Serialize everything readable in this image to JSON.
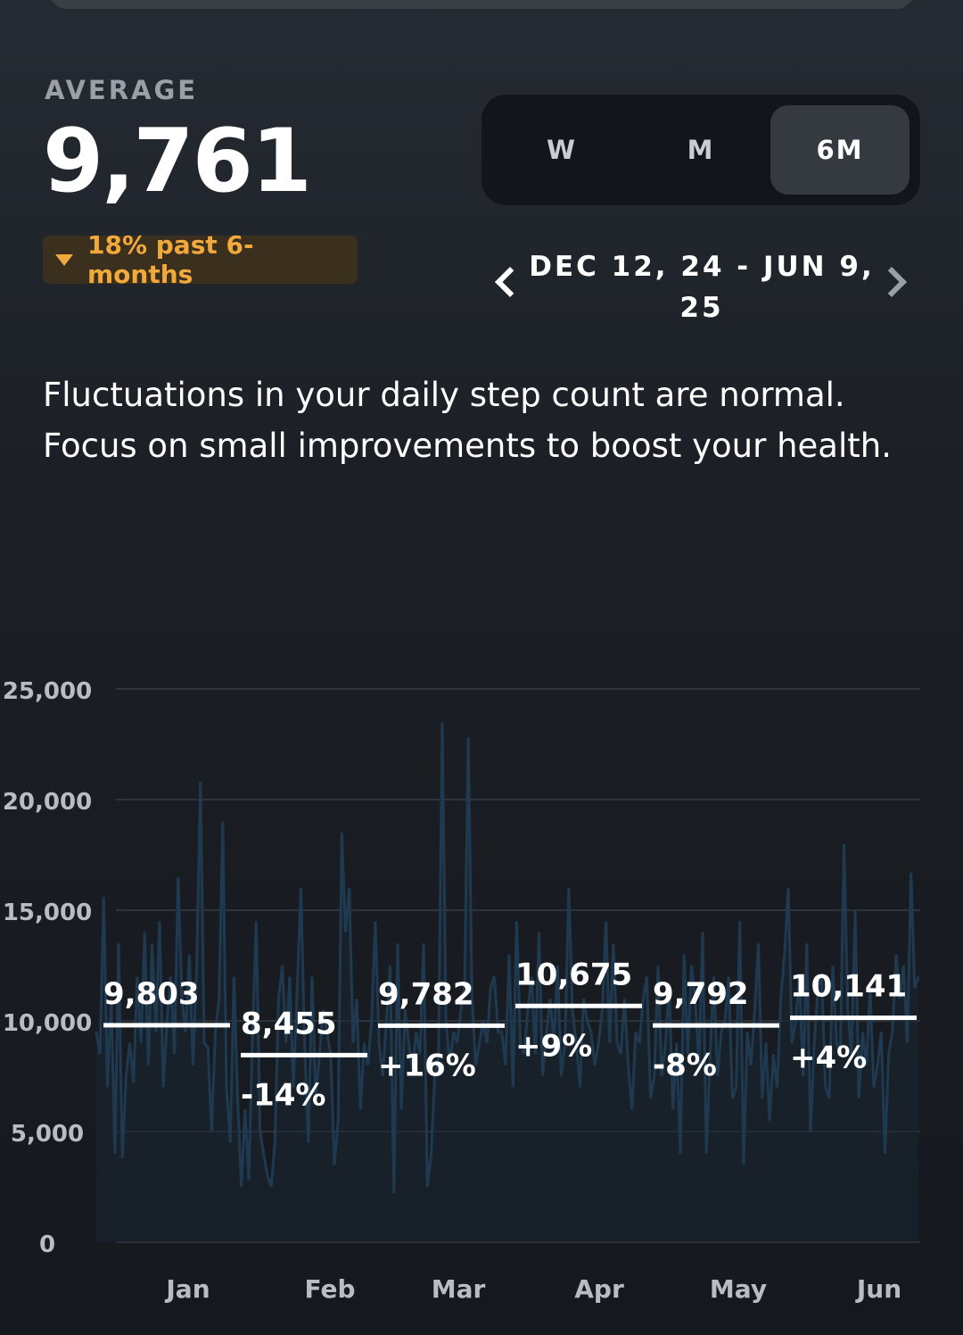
{
  "summary": {
    "label": "AVERAGE",
    "value": "9,761",
    "change_text": "18% past 6-months",
    "change_color": "#f2a93b"
  },
  "range_selector": {
    "options": [
      "W",
      "M",
      "6M"
    ],
    "selected": "6M"
  },
  "date_range": "DEC 12, 24 - JUN 9, 25",
  "message": "Fluctuations in your daily step count are normal. Focus on small improvements to boost your health.",
  "chart_data": {
    "type": "line",
    "ylim": [
      0,
      25000
    ],
    "yticks": [
      "25,000",
      "20,000",
      "15,000",
      "10,000",
      "5,000",
      "0"
    ],
    "ytick_values": [
      25000,
      20000,
      15000,
      10000,
      5000,
      0
    ],
    "months": [
      "Jan",
      "Feb",
      "Mar",
      "Apr",
      "May",
      "Jun"
    ],
    "monthly_averages": [
      {
        "value": 9803,
        "label": "9,803",
        "change": ""
      },
      {
        "value": 8455,
        "label": "8,455",
        "change": "-14%"
      },
      {
        "value": 9782,
        "label": "9,782",
        "change": "+16%"
      },
      {
        "value": 10675,
        "label": "10,675",
        "change": "+9%"
      },
      {
        "value": 9792,
        "label": "9,792",
        "change": "-8%"
      },
      {
        "value": 10141,
        "label": "10,141",
        "change": "+4%"
      }
    ],
    "daily_steps": [
      9500,
      8500,
      15600,
      7000,
      11000,
      4000,
      13500,
      3800,
      7500,
      9000,
      7200,
      12000,
      9000,
      14000,
      8000,
      13500,
      9500,
      14500,
      7000,
      10000,
      12000,
      8500,
      16500,
      11000,
      9500,
      13000,
      8000,
      12500,
      20800,
      9000,
      8800,
      5000,
      9500,
      11000,
      19000,
      7000,
      4500,
      12000,
      6500,
      2500,
      6000,
      2800,
      9500,
      14500,
      5000,
      4000,
      3000,
      2500,
      4500,
      11000,
      12500,
      9000,
      12000,
      7000,
      11500,
      16000,
      9000,
      4500,
      12000,
      6500,
      8500,
      10500,
      9500,
      8500,
      3500,
      5500,
      18500,
      14000,
      16000,
      9000,
      11000,
      6000,
      9000,
      8000,
      10000,
      14500,
      9000,
      7500,
      10000,
      12500,
      2200,
      13500,
      6000,
      10500,
      9000,
      7800,
      9500,
      8500,
      13500,
      2500,
      4000,
      7500,
      8500,
      23500,
      10000,
      8000,
      9500,
      9000,
      10500,
      11500,
      22800,
      11000,
      8000,
      9000,
      10000,
      9000,
      11500,
      12000,
      9500,
      9500,
      8000,
      13000,
      7000,
      14500,
      9000,
      8500,
      10500,
      12000,
      8500,
      14000,
      7500,
      9500,
      11000,
      9000,
      12500,
      7500,
      9000,
      16000,
      10500,
      9000,
      7000,
      11000,
      10000,
      9500,
      8000,
      9000,
      10500,
      14500,
      9000,
      13500,
      9000,
      8500,
      11000,
      8000,
      6000,
      9500,
      9000,
      11000,
      12000,
      6500,
      7500,
      12500,
      7500,
      9000,
      11500,
      6000,
      9000,
      4000,
      13000,
      8500,
      12500,
      11000,
      8000,
      14000,
      4000,
      8500,
      12000,
      7500,
      9500,
      10000,
      12000,
      6500,
      7000,
      14500,
      3500,
      9500,
      8000,
      10500,
      13500,
      6500,
      9000,
      5500,
      8500,
      7000,
      11000,
      13000,
      16000,
      9000,
      10000,
      12000,
      7500,
      13500,
      5000,
      9000,
      11500,
      12000,
      7000,
      6500,
      12500,
      9000,
      8500,
      18000,
      10500,
      8500,
      15000,
      6500,
      9500,
      8000,
      11500,
      7000,
      8000,
      9500,
      4000,
      8500,
      9500,
      13000,
      11000,
      12500,
      9000,
      16700,
      11500,
      12000
    ]
  }
}
